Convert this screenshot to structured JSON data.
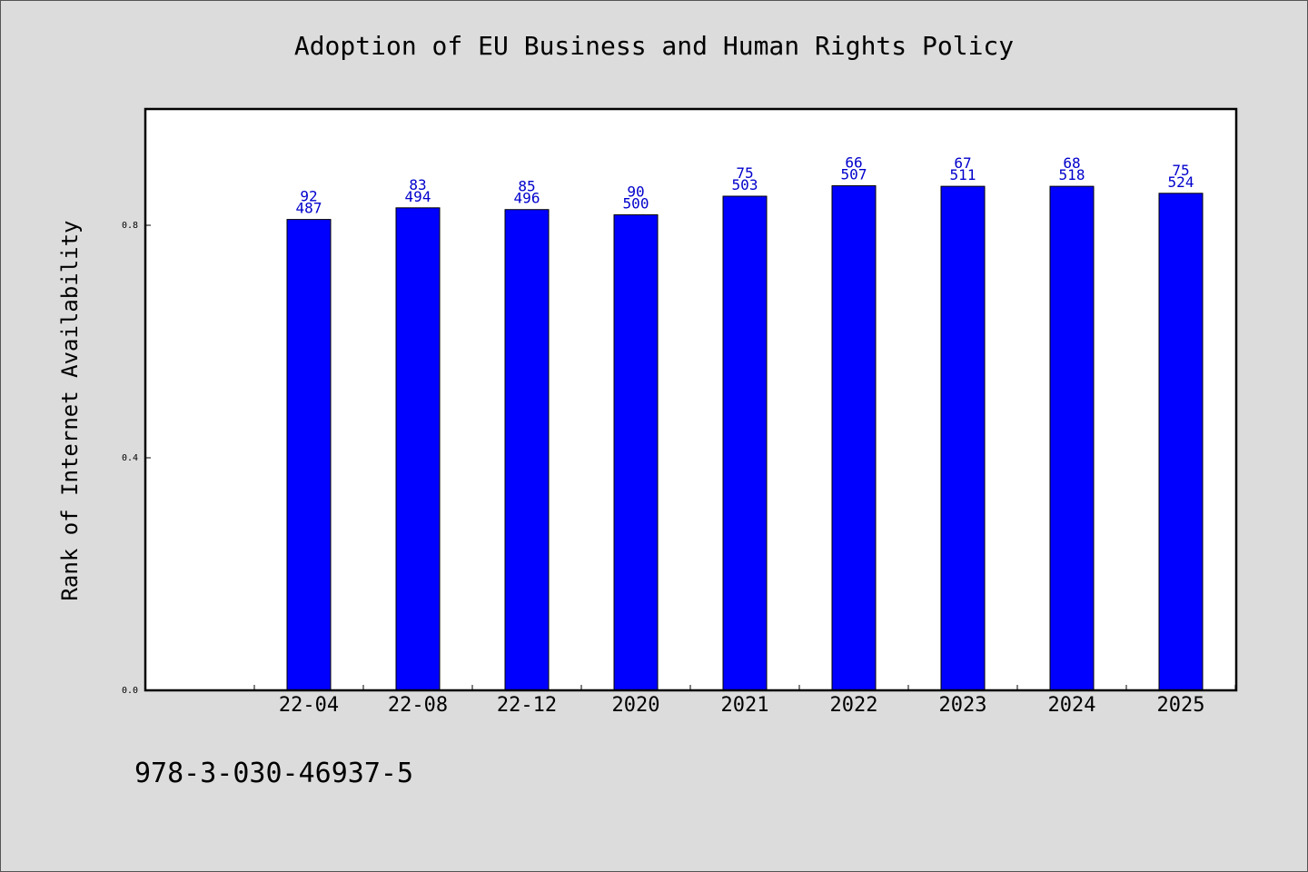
{
  "chart_data": {
    "type": "bar",
    "title": "Adoption of EU Business and Human Rights Policy",
    "xlabel": "",
    "ylabel": "Rank of Internet Availability",
    "categories": [
      "22-04",
      "22-08",
      "22-12",
      "2020",
      "2021",
      "2022",
      "2023",
      "2024",
      "2025"
    ],
    "series": [
      {
        "values": [
          0.81,
          0.83,
          0.827,
          0.818,
          0.85,
          0.868,
          0.867,
          0.867,
          0.855
        ]
      }
    ],
    "bar_labels": [
      [
        "92",
        "487"
      ],
      [
        "83",
        "494"
      ],
      [
        "85",
        "496"
      ],
      [
        "90",
        "500"
      ],
      [
        "75",
        "503"
      ],
      [
        "66",
        "507"
      ],
      [
        "67",
        "511"
      ],
      [
        "68",
        "518"
      ],
      [
        "75",
        "524"
      ]
    ],
    "yticks": [
      "0.0",
      "0.4",
      "0.8"
    ],
    "ytick_values": [
      0.0,
      0.4,
      0.8
    ],
    "ylim": [
      0,
      1.0
    ],
    "grid": false,
    "legend": "none",
    "colors": {
      "bar": "#0000ff",
      "bar_label": "#0000cc",
      "background": "#dcdcdc",
      "plot_bg": "#ffffff"
    }
  },
  "footer": {
    "id_text": "978-3-030-46937-5"
  }
}
